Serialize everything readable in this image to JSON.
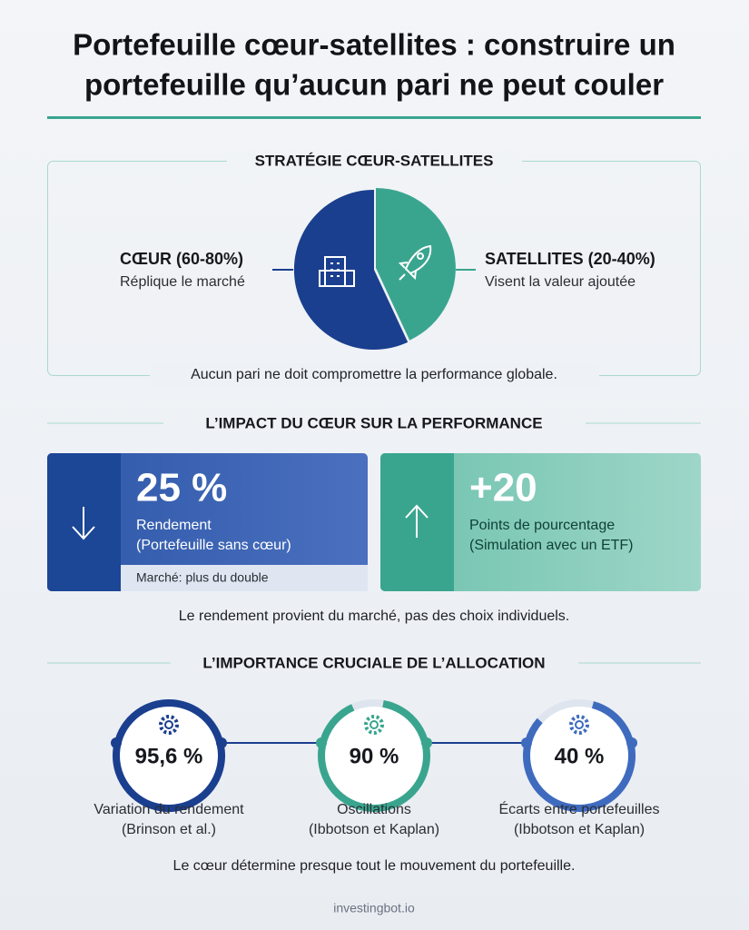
{
  "header": {
    "title_lines": [
      "Portefeuille cœur-satellites : construire un",
      "portefeuille qu’aucun pari ne peut couler"
    ]
  },
  "strategy": {
    "heading": "STRATÉGIE CŒUR-SATELLITES",
    "core": {
      "label": "CŒUR (60-80%)",
      "desc": "Réplique le marché"
    },
    "satellites": {
      "label": "SATELLITES (20-40%)",
      "desc": "Visent la valeur ajoutée"
    },
    "note": "Aucun pari ne doit compromettre la performance globale."
  },
  "impact": {
    "heading": "L’IMPACT DU CŒUR SUR LA PERFORMANCE",
    "cards": [
      {
        "value": "25 %",
        "desc_lines": [
          "Rendement",
          "(Portefeuille sans cœur)"
        ],
        "footer": "Marché: plus du double"
      },
      {
        "value": "+20",
        "desc_lines": [
          "Points de pourcentage",
          "(Simulation avec un ETF)"
        ]
      }
    ],
    "note": "Le rendement provient du marché, pas des choix individuels."
  },
  "allocation": {
    "heading": "L’IMPORTANCE CRUCIALE DE L’ALLOCATION",
    "items": [
      {
        "value": "95,6 %",
        "label_lines": [
          "Variation du rendement",
          "(Brinson et al.)"
        ]
      },
      {
        "value": "90 %",
        "label_lines": [
          "Oscillations",
          "(Ibbotson et Kaplan)"
        ]
      },
      {
        "value": "40 %",
        "label_lines": [
          "Écarts entre portefeuilles",
          "(Ibbotson et Kaplan)"
        ]
      }
    ],
    "note": "Le cœur détermine presque tout le mouvement du portefeuille."
  },
  "footer": {
    "source": "investingbot.io"
  }
}
